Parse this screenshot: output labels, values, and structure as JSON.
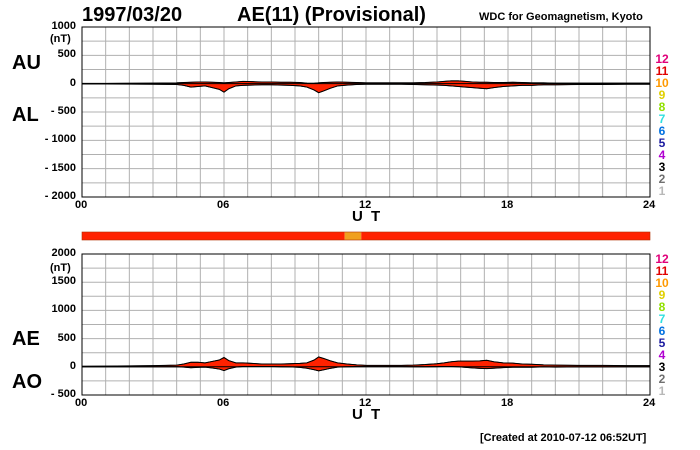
{
  "header": {
    "date": "1997/03/20",
    "title": "AE(11) (Provisional)",
    "organization": "WDC for Geomagnetism, Kyoto"
  },
  "footer": {
    "created": "[Created at 2010-07-12 06:52UT]"
  },
  "legend": {
    "labels": [
      "12",
      "11",
      "10",
      "9",
      "8",
      "7",
      "6",
      "5",
      "4",
      "3",
      "2",
      "1"
    ],
    "colors": [
      "#e0007a",
      "#e00000",
      "#ff9900",
      "#e0d000",
      "#90e000",
      "#30e0e0",
      "#0070e0",
      "#1a1aa0",
      "#b000d0",
      "#000000",
      "#707070",
      "#b8b8b8"
    ]
  },
  "colors": {
    "fill": "#ff2200",
    "grid": "#b0b0b0",
    "status_main": "#ff2200",
    "status_accent": "#f0a020"
  },
  "chart_data": [
    {
      "type": "area",
      "panel": "top",
      "series_labels": [
        "AU",
        "AL"
      ],
      "unit": "(nT)",
      "xlabel": "U T",
      "ylim": [
        -2000,
        1000
      ],
      "yticks": [
        "1000",
        "500",
        "0",
        "- 500",
        "- 1000",
        "- 1500",
        "- 2000"
      ],
      "xticks": [
        "00",
        "06",
        "12",
        "18",
        "24"
      ],
      "x_hours": [
        0,
        1,
        2,
        3,
        4,
        4.3,
        4.6,
        4.9,
        5.2,
        5.5,
        5.8,
        6,
        6.2,
        6.5,
        6.8,
        7.2,
        7.6,
        8,
        8.4,
        8.8,
        9.2,
        9.5,
        9.8,
        10,
        10.2,
        10.5,
        10.8,
        11.2,
        11.6,
        12,
        12.5,
        13,
        13.5,
        14,
        14.5,
        15,
        15.3,
        15.6,
        15.9,
        16.2,
        16.5,
        16.8,
        17.1,
        17.4,
        17.8,
        18.2,
        18.6,
        19,
        19.5,
        20,
        21,
        22,
        23,
        24
      ],
      "au": [
        5,
        5,
        8,
        10,
        15,
        20,
        25,
        30,
        30,
        25,
        20,
        15,
        20,
        30,
        40,
        35,
        30,
        30,
        25,
        25,
        20,
        10,
        8,
        15,
        20,
        25,
        30,
        25,
        20,
        15,
        15,
        15,
        15,
        15,
        20,
        30,
        40,
        50,
        50,
        40,
        30,
        25,
        25,
        20,
        20,
        25,
        20,
        15,
        15,
        10,
        10,
        10,
        10,
        10
      ],
      "al": [
        -5,
        -5,
        -8,
        -10,
        -15,
        -30,
        -60,
        -50,
        -40,
        -70,
        -100,
        -150,
        -90,
        -40,
        -30,
        -25,
        -20,
        -20,
        -25,
        -30,
        -40,
        -60,
        -110,
        -160,
        -130,
        -80,
        -40,
        -25,
        -15,
        -10,
        -10,
        -10,
        -10,
        -15,
        -20,
        -25,
        -30,
        -40,
        -50,
        -60,
        -70,
        -80,
        -90,
        -70,
        -50,
        -40,
        -30,
        -30,
        -20,
        -20,
        -15,
        -15,
        -10,
        -10
      ]
    },
    {
      "type": "area",
      "panel": "bottom",
      "series_labels": [
        "AE",
        "AO"
      ],
      "unit": "(nT)",
      "xlabel": "U T",
      "ylim": [
        -500,
        2000
      ],
      "yticks": [
        "2000",
        "1500",
        "1000",
        "500",
        "0",
        "- 500"
      ],
      "xticks": [
        "00",
        "06",
        "12",
        "18",
        "24"
      ],
      "x_hours": [
        0,
        1,
        2,
        3,
        4,
        4.3,
        4.6,
        4.9,
        5.2,
        5.5,
        5.8,
        6,
        6.2,
        6.5,
        6.8,
        7.2,
        7.6,
        8,
        8.4,
        8.8,
        9.2,
        9.5,
        9.8,
        10,
        10.2,
        10.5,
        10.8,
        11.2,
        11.6,
        12,
        12.5,
        13,
        13.5,
        14,
        14.5,
        15,
        15.3,
        15.6,
        15.9,
        16.2,
        16.5,
        16.8,
        17.1,
        17.4,
        17.8,
        18.2,
        18.6,
        19,
        19.5,
        20,
        21,
        22,
        23,
        24
      ],
      "ae": [
        10,
        12,
        16,
        20,
        30,
        50,
        80,
        80,
        70,
        95,
        120,
        165,
        110,
        70,
        70,
        60,
        50,
        50,
        50,
        55,
        60,
        70,
        118,
        175,
        150,
        105,
        70,
        50,
        35,
        25,
        25,
        25,
        25,
        30,
        40,
        55,
        70,
        90,
        100,
        100,
        100,
        105,
        115,
        90,
        70,
        65,
        50,
        45,
        35,
        30,
        25,
        25,
        20,
        20
      ],
      "ao": [
        0,
        0,
        0,
        0,
        0,
        -5,
        -17,
        -10,
        -5,
        -22,
        -40,
        -67,
        -35,
        -5,
        5,
        5,
        5,
        5,
        0,
        -2,
        -10,
        -25,
        -51,
        -72,
        -55,
        -27,
        -5,
        0,
        2,
        2,
        2,
        2,
        2,
        0,
        0,
        2,
        5,
        5,
        0,
        -10,
        -20,
        -27,
        -32,
        -25,
        -15,
        -7,
        -5,
        -7,
        -2,
        -5,
        -2,
        -2,
        0,
        0
      ]
    }
  ],
  "status_bar": {
    "segments_hours": [
      [
        0,
        11.1,
        "main"
      ],
      [
        11.1,
        11.8,
        "accent"
      ],
      [
        11.8,
        24,
        "main"
      ]
    ]
  }
}
